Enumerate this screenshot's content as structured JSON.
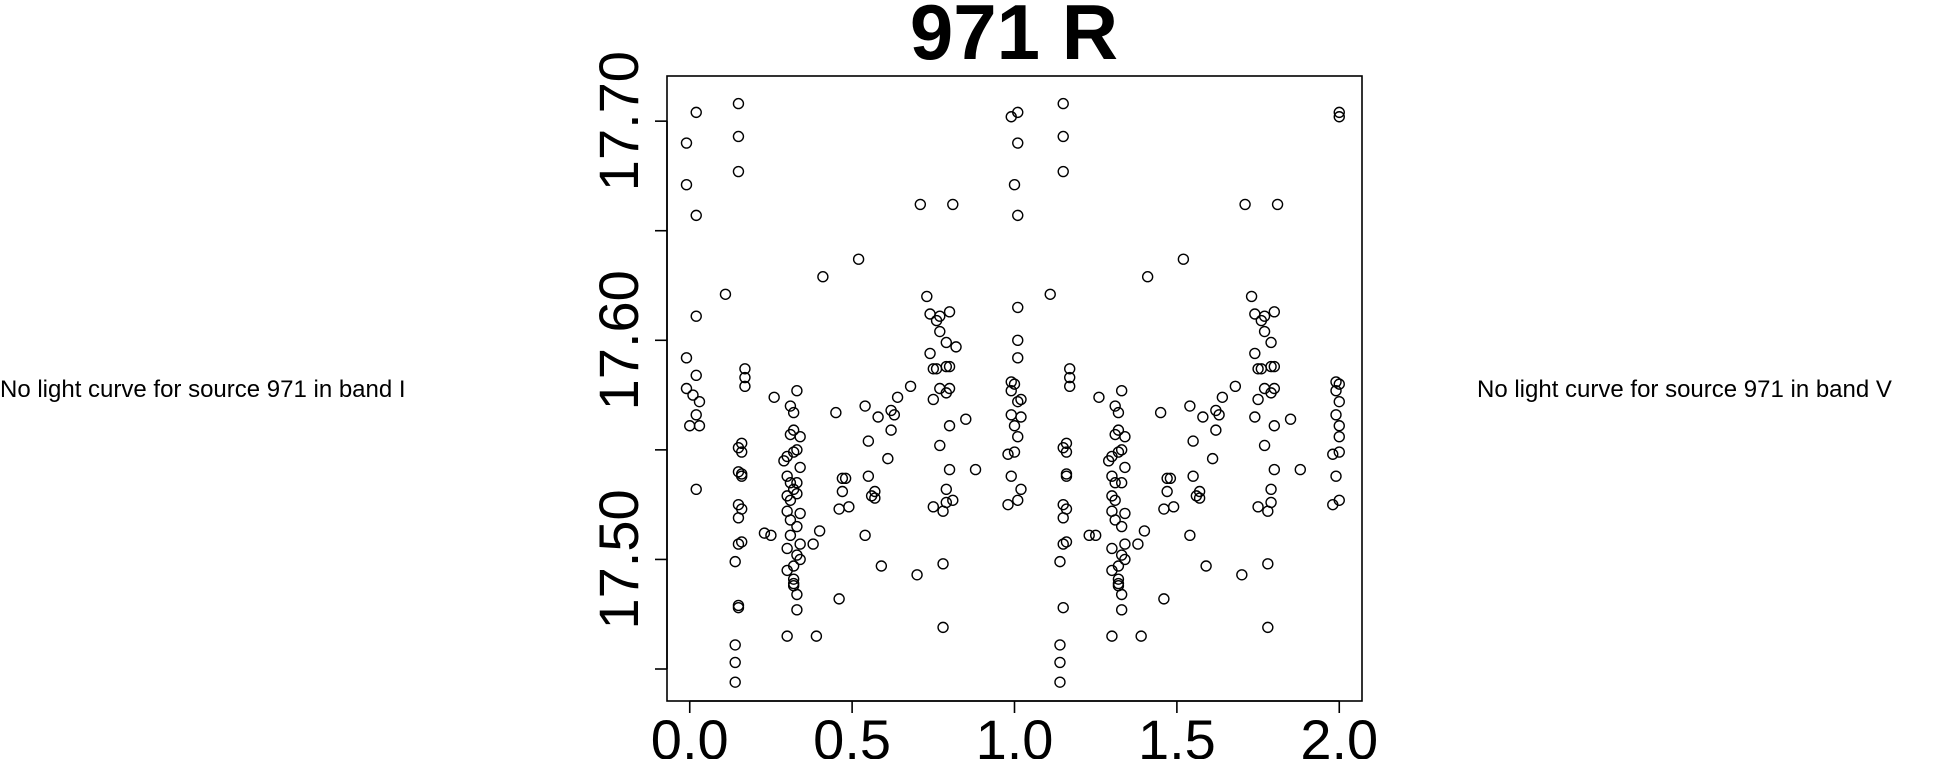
{
  "notes": {
    "left": "No light curve for source 971 in band I",
    "right": "No light curve for source 971 in band V"
  },
  "chart_data": {
    "type": "scatter",
    "title": "971 R",
    "xlabel": "",
    "ylabel": "",
    "xlim": [
      -0.07,
      2.07
    ],
    "ylim": [
      17.7206,
      17.4354
    ],
    "y_inverted": true,
    "x_ticks": [
      "0.0",
      "0.5",
      "1.0",
      "1.5",
      "2.0"
    ],
    "x_tick_values": [
      0.0,
      0.5,
      1.0,
      1.5,
      2.0
    ],
    "y_ticks": [
      "17.50",
      "17.60",
      "17.70"
    ],
    "y_tick_values": [
      17.5,
      17.6,
      17.7
    ],
    "y_minor_tick_values": [
      17.45,
      17.55,
      17.65
    ],
    "marker": "open-circle",
    "grid": false,
    "points": [
      [
        -0.01,
        17.578
      ],
      [
        -0.01,
        17.592
      ],
      [
        -0.01,
        17.671
      ],
      [
        -0.01,
        17.69
      ],
      [
        0.0,
        17.561
      ],
      [
        0.01,
        17.575
      ],
      [
        0.02,
        17.566
      ],
      [
        0.02,
        17.584
      ],
      [
        0.02,
        17.611
      ],
      [
        0.02,
        17.657
      ],
      [
        0.02,
        17.704
      ],
      [
        0.02,
        17.532
      ],
      [
        0.03,
        17.572
      ],
      [
        0.03,
        17.561
      ],
      [
        0.11,
        17.621
      ],
      [
        0.14,
        17.461
      ],
      [
        0.14,
        17.453
      ],
      [
        0.14,
        17.444
      ],
      [
        0.15,
        17.478
      ],
      [
        0.15,
        17.479
      ],
      [
        0.15,
        17.551
      ],
      [
        0.15,
        17.677
      ],
      [
        0.15,
        17.708
      ],
      [
        0.15,
        17.693
      ],
      [
        0.14,
        17.499
      ],
      [
        0.15,
        17.507
      ],
      [
        0.15,
        17.525
      ],
      [
        0.16,
        17.539
      ],
      [
        0.16,
        17.508
      ],
      [
        0.16,
        17.523
      ],
      [
        0.16,
        17.538
      ],
      [
        0.16,
        17.549
      ],
      [
        0.16,
        17.553
      ],
      [
        0.17,
        17.579
      ],
      [
        0.17,
        17.587
      ],
      [
        0.17,
        17.583
      ],
      [
        0.15,
        17.519
      ],
      [
        0.15,
        17.54
      ],
      [
        0.25,
        17.511
      ],
      [
        0.23,
        17.512
      ],
      [
        0.26,
        17.574
      ],
      [
        0.29,
        17.545
      ],
      [
        0.3,
        17.547
      ],
      [
        0.3,
        17.538
      ],
      [
        0.3,
        17.529
      ],
      [
        0.3,
        17.522
      ],
      [
        0.3,
        17.505
      ],
      [
        0.3,
        17.495
      ],
      [
        0.31,
        17.518
      ],
      [
        0.31,
        17.527
      ],
      [
        0.31,
        17.557
      ],
      [
        0.31,
        17.57
      ],
      [
        0.31,
        17.535
      ],
      [
        0.32,
        17.489
      ],
      [
        0.32,
        17.491
      ],
      [
        0.32,
        17.497
      ],
      [
        0.32,
        17.549
      ],
      [
        0.32,
        17.559
      ],
      [
        0.32,
        17.567
      ],
      [
        0.32,
        17.488
      ],
      [
        0.33,
        17.515
      ],
      [
        0.33,
        17.535
      ],
      [
        0.33,
        17.55
      ],
      [
        0.33,
        17.577
      ],
      [
        0.33,
        17.484
      ],
      [
        0.33,
        17.502
      ],
      [
        0.34,
        17.507
      ],
      [
        0.34,
        17.521
      ],
      [
        0.34,
        17.542
      ],
      [
        0.34,
        17.556
      ],
      [
        0.33,
        17.477
      ],
      [
        0.34,
        17.5
      ],
      [
        0.32,
        17.532
      ],
      [
        0.33,
        17.53
      ],
      [
        0.31,
        17.511
      ],
      [
        0.3,
        17.465
      ],
      [
        0.38,
        17.507
      ],
      [
        0.39,
        17.465
      ],
      [
        0.4,
        17.513
      ],
      [
        0.41,
        17.629
      ],
      [
        0.45,
        17.567
      ],
      [
        0.46,
        17.523
      ],
      [
        0.46,
        17.482
      ],
      [
        0.47,
        17.531
      ],
      [
        0.47,
        17.537
      ],
      [
        0.48,
        17.537
      ],
      [
        0.49,
        17.524
      ],
      [
        0.52,
        17.637
      ],
      [
        0.55,
        17.538
      ],
      [
        0.54,
        17.511
      ],
      [
        0.56,
        17.529
      ],
      [
        0.57,
        17.528
      ],
      [
        0.57,
        17.531
      ],
      [
        0.54,
        17.57
      ],
      [
        0.55,
        17.554
      ],
      [
        0.58,
        17.565
      ],
      [
        0.59,
        17.497
      ],
      [
        0.61,
        17.546
      ],
      [
        0.62,
        17.568
      ],
      [
        0.62,
        17.559
      ],
      [
        0.63,
        17.566
      ],
      [
        0.64,
        17.574
      ],
      [
        0.68,
        17.579
      ],
      [
        0.7,
        17.493
      ],
      [
        0.73,
        17.62
      ],
      [
        0.74,
        17.612
      ],
      [
        0.74,
        17.594
      ],
      [
        0.75,
        17.587
      ],
      [
        0.75,
        17.524
      ],
      [
        0.75,
        17.573
      ],
      [
        0.76,
        17.609
      ],
      [
        0.76,
        17.587
      ],
      [
        0.77,
        17.611
      ],
      [
        0.77,
        17.604
      ],
      [
        0.77,
        17.578
      ],
      [
        0.77,
        17.552
      ],
      [
        0.78,
        17.498
      ],
      [
        0.78,
        17.469
      ],
      [
        0.78,
        17.522
      ],
      [
        0.79,
        17.599
      ],
      [
        0.79,
        17.588
      ],
      [
        0.79,
        17.576
      ],
      [
        0.79,
        17.526
      ],
      [
        0.79,
        17.532
      ],
      [
        0.8,
        17.541
      ],
      [
        0.8,
        17.561
      ],
      [
        0.8,
        17.578
      ],
      [
        0.8,
        17.588
      ],
      [
        0.8,
        17.613
      ],
      [
        0.81,
        17.662
      ],
      [
        0.81,
        17.527
      ],
      [
        0.71,
        17.662
      ],
      [
        0.85,
        17.564
      ],
      [
        0.88,
        17.541
      ],
      [
        0.82,
        17.597
      ],
      [
        0.98,
        17.525
      ],
      [
        0.98,
        17.548
      ],
      [
        0.99,
        17.566
      ],
      [
        0.99,
        17.577
      ],
      [
        0.99,
        17.581
      ],
      [
        1.0,
        17.549
      ],
      [
        1.0,
        17.58
      ],
      [
        1.01,
        17.527
      ],
      [
        1.01,
        17.556
      ],
      [
        1.01,
        17.572
      ],
      [
        1.01,
        17.592
      ],
      [
        1.02,
        17.565
      ],
      [
        1.02,
        17.573
      ],
      [
        1.02,
        17.532
      ],
      [
        0.99,
        17.538
      ],
      [
        1.0,
        17.561
      ],
      [
        1.01,
        17.6
      ],
      [
        1.01,
        17.615
      ],
      [
        1.01,
        17.657
      ],
      [
        1.01,
        17.69
      ],
      [
        1.0,
        17.671
      ],
      [
        1.01,
        17.704
      ],
      [
        0.99,
        17.702
      ],
      [
        1.11,
        17.621
      ],
      [
        1.14,
        17.461
      ],
      [
        1.14,
        17.453
      ],
      [
        1.14,
        17.444
      ],
      [
        1.15,
        17.478
      ],
      [
        1.15,
        17.551
      ],
      [
        1.15,
        17.677
      ],
      [
        1.15,
        17.708
      ],
      [
        1.15,
        17.693
      ],
      [
        1.14,
        17.499
      ],
      [
        1.15,
        17.507
      ],
      [
        1.15,
        17.525
      ],
      [
        1.16,
        17.539
      ],
      [
        1.16,
        17.508
      ],
      [
        1.16,
        17.523
      ],
      [
        1.16,
        17.538
      ],
      [
        1.16,
        17.549
      ],
      [
        1.16,
        17.553
      ],
      [
        1.17,
        17.579
      ],
      [
        1.17,
        17.587
      ],
      [
        1.17,
        17.583
      ],
      [
        1.15,
        17.519
      ],
      [
        1.23,
        17.511
      ],
      [
        1.25,
        17.511
      ],
      [
        1.26,
        17.574
      ],
      [
        1.29,
        17.545
      ],
      [
        1.3,
        17.547
      ],
      [
        1.3,
        17.538
      ],
      [
        1.3,
        17.529
      ],
      [
        1.3,
        17.522
      ],
      [
        1.3,
        17.505
      ],
      [
        1.3,
        17.495
      ],
      [
        1.31,
        17.518
      ],
      [
        1.31,
        17.527
      ],
      [
        1.31,
        17.557
      ],
      [
        1.31,
        17.57
      ],
      [
        1.31,
        17.535
      ],
      [
        1.32,
        17.489
      ],
      [
        1.32,
        17.491
      ],
      [
        1.32,
        17.497
      ],
      [
        1.32,
        17.549
      ],
      [
        1.32,
        17.559
      ],
      [
        1.32,
        17.567
      ],
      [
        1.32,
        17.488
      ],
      [
        1.33,
        17.515
      ],
      [
        1.33,
        17.535
      ],
      [
        1.33,
        17.55
      ],
      [
        1.33,
        17.577
      ],
      [
        1.33,
        17.484
      ],
      [
        1.33,
        17.502
      ],
      [
        1.34,
        17.507
      ],
      [
        1.34,
        17.521
      ],
      [
        1.34,
        17.542
      ],
      [
        1.34,
        17.556
      ],
      [
        1.33,
        17.477
      ],
      [
        1.34,
        17.5
      ],
      [
        1.3,
        17.465
      ],
      [
        1.38,
        17.507
      ],
      [
        1.39,
        17.465
      ],
      [
        1.4,
        17.513
      ],
      [
        1.41,
        17.629
      ],
      [
        1.45,
        17.567
      ],
      [
        1.46,
        17.523
      ],
      [
        1.46,
        17.482
      ],
      [
        1.47,
        17.531
      ],
      [
        1.47,
        17.537
      ],
      [
        1.48,
        17.537
      ],
      [
        1.49,
        17.524
      ],
      [
        1.52,
        17.637
      ],
      [
        1.55,
        17.538
      ],
      [
        1.54,
        17.511
      ],
      [
        1.56,
        17.529
      ],
      [
        1.57,
        17.528
      ],
      [
        1.57,
        17.531
      ],
      [
        1.54,
        17.57
      ],
      [
        1.55,
        17.554
      ],
      [
        1.58,
        17.565
      ],
      [
        1.59,
        17.497
      ],
      [
        1.61,
        17.546
      ],
      [
        1.62,
        17.568
      ],
      [
        1.62,
        17.559
      ],
      [
        1.63,
        17.566
      ],
      [
        1.64,
        17.574
      ],
      [
        1.68,
        17.579
      ],
      [
        1.7,
        17.493
      ],
      [
        1.73,
        17.62
      ],
      [
        1.74,
        17.612
      ],
      [
        1.74,
        17.594
      ],
      [
        1.75,
        17.587
      ],
      [
        1.75,
        17.524
      ],
      [
        1.75,
        17.573
      ],
      [
        1.76,
        17.609
      ],
      [
        1.76,
        17.587
      ],
      [
        1.77,
        17.611
      ],
      [
        1.77,
        17.604
      ],
      [
        1.77,
        17.578
      ],
      [
        1.77,
        17.552
      ],
      [
        1.78,
        17.498
      ],
      [
        1.78,
        17.469
      ],
      [
        1.78,
        17.522
      ],
      [
        1.79,
        17.599
      ],
      [
        1.79,
        17.588
      ],
      [
        1.79,
        17.576
      ],
      [
        1.79,
        17.526
      ],
      [
        1.79,
        17.532
      ],
      [
        1.8,
        17.541
      ],
      [
        1.8,
        17.561
      ],
      [
        1.8,
        17.578
      ],
      [
        1.8,
        17.588
      ],
      [
        1.8,
        17.613
      ],
      [
        1.81,
        17.662
      ],
      [
        1.71,
        17.662
      ],
      [
        1.85,
        17.564
      ],
      [
        1.88,
        17.541
      ],
      [
        1.74,
        17.565
      ],
      [
        1.98,
        17.525
      ],
      [
        1.98,
        17.548
      ],
      [
        1.99,
        17.566
      ],
      [
        1.99,
        17.577
      ],
      [
        1.99,
        17.581
      ],
      [
        2.0,
        17.549
      ],
      [
        2.0,
        17.58
      ],
      [
        2.0,
        17.527
      ],
      [
        2.0,
        17.556
      ],
      [
        2.0,
        17.572
      ],
      [
        1.99,
        17.538
      ],
      [
        2.0,
        17.561
      ],
      [
        2.0,
        17.702
      ],
      [
        2.0,
        17.704
      ]
    ]
  }
}
